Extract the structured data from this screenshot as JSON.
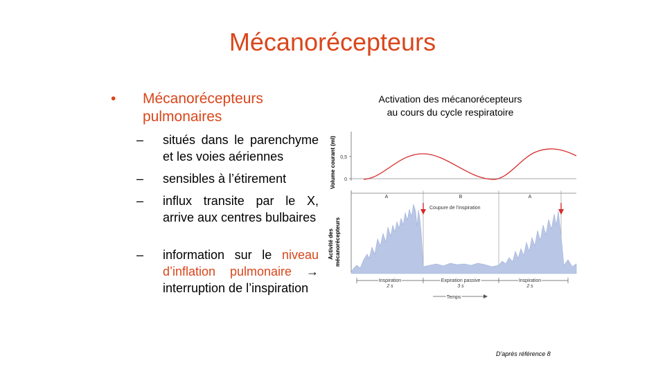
{
  "slide": {
    "title": "Mécanorécepteurs"
  },
  "bullets": {
    "main_marker": "•",
    "main": "Mécanorécepteurs pulmonaires",
    "dash": "–",
    "sub1": "situés dans le parenchyme et les voies aériennes",
    "sub2": "sensibles à l’étirement",
    "sub3": "influx transite par le X, arrive aux centres bulbaires",
    "sub4_a": "information sur le ",
    "sub4_highlight": "niveau d’inflation pulmonaire",
    "sub4_b": " → interruption de l’inspiration"
  },
  "figure": {
    "caption_line1": "Activation des mécanorécepteurs",
    "caption_line2": "au cours du cycle respiratoire",
    "top_ylabel": "Volume courant (ml)",
    "top_ticks": [
      "0,5",
      "0"
    ],
    "bottom_ylabel_1": "Activité des",
    "bottom_ylabel_2": "mécanorécepteurs",
    "phase_letters": [
      "A",
      "B",
      "A"
    ],
    "arrow_label": "Coupure de l’inspiration",
    "phases": [
      {
        "name": "Inspiration",
        "duration": "2 s"
      },
      {
        "name": "Expiration passive",
        "duration": "3 s"
      },
      {
        "name": "Inspiration",
        "duration": "2 s"
      }
    ],
    "time_label": "Temps",
    "colors": {
      "volume_curve": "#d62b2b",
      "activity_fill": "#b9c6e6",
      "arrow": "#d62b2b"
    }
  },
  "footer": {
    "credit": "D'après référence 8"
  }
}
